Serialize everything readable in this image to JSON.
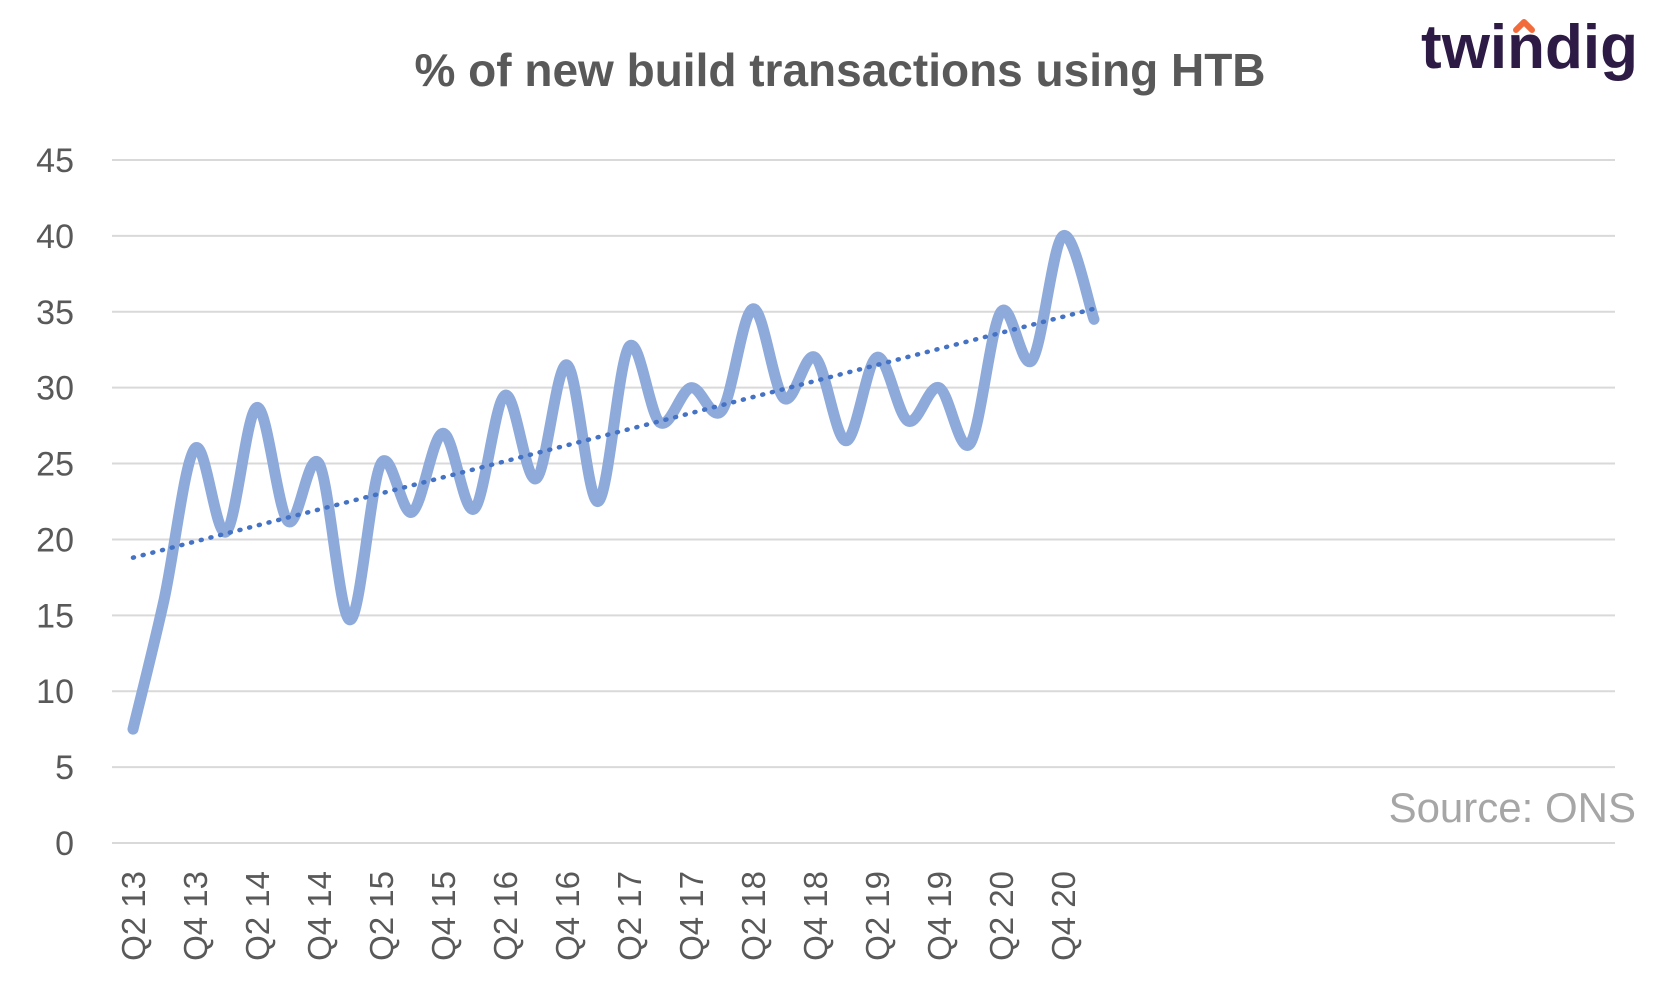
{
  "chart_data": {
    "type": "line",
    "title": "% of new build transactions using HTB",
    "source": "Source: ONS",
    "brand": "twindig",
    "colors": {
      "series": "#8eaadb",
      "trendline": "#4472c4",
      "grid": "#d9d9d9",
      "text": "#595959",
      "brand_text": "#2d1b45",
      "brand_accent": "#f26b3a"
    },
    "ylim": [
      0,
      45
    ],
    "yticks": [
      0,
      5,
      10,
      15,
      20,
      25,
      30,
      35,
      40,
      45
    ],
    "grid": true,
    "legend": "none",
    "x": [
      "Q2 13",
      "Q3 13",
      "Q4 13",
      "Q1 14",
      "Q2 14",
      "Q3 14",
      "Q4 14",
      "Q1 15",
      "Q2 15",
      "Q3 15",
      "Q4 15",
      "Q1 16",
      "Q2 16",
      "Q3 16",
      "Q4 16",
      "Q1 17",
      "Q2 17",
      "Q3 17",
      "Q4 17",
      "Q1 18",
      "Q2 18",
      "Q3 18",
      "Q4 18",
      "Q1 19",
      "Q2 19",
      "Q3 19",
      "Q4 19",
      "Q1 20",
      "Q2 20",
      "Q3 20",
      "Q4 20",
      "Q1 21"
    ],
    "xtick_labels": [
      "Q2 13",
      "Q4 13",
      "Q2 14",
      "Q4 14",
      "Q2 15",
      "Q4 15",
      "Q2 16",
      "Q4 16",
      "Q2 17",
      "Q4 17",
      "Q2 18",
      "Q4 18",
      "Q2 19",
      "Q4 19",
      "Q2 20",
      "Q4 20"
    ],
    "series": [
      {
        "values": [
          7.5,
          16,
          26,
          20.5,
          28.7,
          21.2,
          25,
          14.7,
          25,
          21.8,
          27,
          22,
          29.5,
          24,
          31.5,
          22.5,
          32.7,
          27.7,
          30,
          28.5,
          35.2,
          29.3,
          32,
          26.5,
          32,
          27.8,
          30,
          26.3,
          35,
          31.8,
          40,
          34.5
        ]
      }
    ],
    "trendline": {
      "style": "dotted",
      "type": "linear",
      "start": 18.8,
      "end": 35.2
    }
  }
}
